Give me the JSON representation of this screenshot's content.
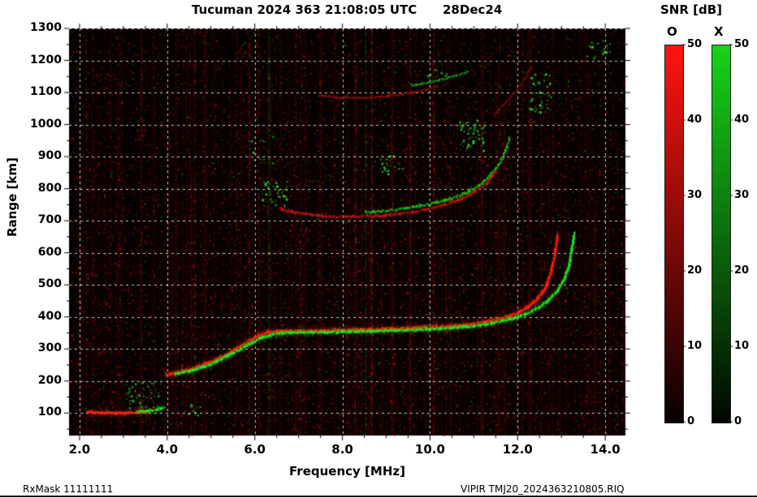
{
  "title": {
    "main": "Tucuman 2024 363 21:08:05 UTC",
    "date": "28Dec24"
  },
  "footer": {
    "left": "RxMask 11111111",
    "right": "VIPIR  TMJ20_2024363210805.RIQ"
  },
  "chart_data": {
    "type": "heatmap",
    "description": "VIPIR ionogram: echo SNR versus sounding frequency and virtual range. O-mode echoes shown in red, X-mode echoes in green on black background.",
    "title": "Tucuman 2024 363 21:08:05 UTC",
    "subtitle": "28Dec24",
    "xlabel": "Frequency [MHz]",
    "ylabel": "Range [km]",
    "xlim": [
      1.76,
      14.46
    ],
    "ylim": [
      30,
      1300
    ],
    "x_tick_values": [
      2,
      4,
      6,
      8,
      10,
      12,
      14
    ],
    "x_tick_labels": [
      "2.0",
      "4.0",
      "6.0",
      "8.0",
      "10.0",
      "12.0",
      "14.0"
    ],
    "x_minor_step": 0.5,
    "y_tick_values": [
      100,
      200,
      300,
      400,
      500,
      600,
      700,
      800,
      900,
      1000,
      1100,
      1200,
      1300
    ],
    "y_tick_labels": [
      "100",
      "200",
      "300",
      "400",
      "500",
      "600",
      "700",
      "800",
      "900",
      "1000",
      "1100",
      "1200",
      "1300"
    ],
    "y_minor_step": 50,
    "grid": {
      "show": true,
      "color": "#ffffff",
      "dash": [
        3,
        4
      ],
      "alpha": 0.8
    },
    "plot_bg": "#060100",
    "colorbar": {
      "title": "SNR [dB]",
      "min": 0,
      "max": 50,
      "tick_values": [
        0,
        10,
        20,
        30,
        40,
        50
      ],
      "tick_labels": [
        "0",
        "10",
        "20",
        "30",
        "40",
        "50"
      ],
      "bars": [
        {
          "label": "O",
          "top_color": "#ff1410",
          "bottom_color": "#070000"
        },
        {
          "label": "X",
          "top_color": "#17d417",
          "bottom_color": "#000700"
        }
      ]
    },
    "traces": [
      {
        "name": "E-layer-O",
        "mode": "O",
        "color": "#ff2a1a",
        "width": 3.0,
        "jitter": 2.0,
        "glow": 1,
        "points": [
          [
            2.15,
            104
          ],
          [
            2.45,
            101
          ],
          [
            2.8,
            100
          ],
          [
            3.1,
            100
          ],
          [
            3.35,
            102
          ],
          [
            3.55,
            105
          ]
        ]
      },
      {
        "name": "E-layer-X",
        "mode": "X",
        "color": "#2aee2a",
        "width": 2.5,
        "jitter": 2.0,
        "glow": 1,
        "points": [
          [
            3.3,
            105
          ],
          [
            3.55,
            107
          ],
          [
            3.75,
            111
          ],
          [
            3.92,
            117
          ]
        ]
      },
      {
        "name": "F-trace-O",
        "mode": "O",
        "color": "#ff2114",
        "width": 3.2,
        "jitter": 2.4,
        "glow": 1,
        "points": [
          [
            3.95,
            219
          ],
          [
            4.25,
            228
          ],
          [
            4.65,
            243
          ],
          [
            5.05,
            263
          ],
          [
            5.45,
            290
          ],
          [
            5.8,
            320
          ],
          [
            6.05,
            340
          ],
          [
            6.3,
            352
          ],
          [
            6.7,
            356
          ],
          [
            7.4,
            357
          ],
          [
            8.2,
            359
          ],
          [
            9.0,
            362
          ],
          [
            9.8,
            366
          ],
          [
            10.4,
            371
          ],
          [
            10.9,
            377
          ],
          [
            11.3,
            385
          ],
          [
            11.7,
            398
          ],
          [
            12.0,
            413
          ],
          [
            12.25,
            433
          ],
          [
            12.45,
            458
          ],
          [
            12.6,
            488
          ],
          [
            12.7,
            520
          ],
          [
            12.78,
            560
          ],
          [
            12.85,
            612
          ],
          [
            12.9,
            655
          ]
        ]
      },
      {
        "name": "F-trace-X",
        "mode": "X",
        "color": "#21ef21",
        "width": 2.8,
        "jitter": 2.0,
        "glow": 1,
        "points": [
          [
            4.15,
            221
          ],
          [
            4.55,
            233
          ],
          [
            4.95,
            251
          ],
          [
            5.35,
            277
          ],
          [
            5.75,
            307
          ],
          [
            6.1,
            332
          ],
          [
            6.4,
            347
          ],
          [
            6.8,
            351
          ],
          [
            7.5,
            352
          ],
          [
            8.3,
            354
          ],
          [
            9.1,
            357
          ],
          [
            9.9,
            361
          ],
          [
            10.5,
            366
          ],
          [
            11.0,
            372
          ],
          [
            11.4,
            380
          ],
          [
            11.8,
            392
          ],
          [
            12.15,
            408
          ],
          [
            12.45,
            428
          ],
          [
            12.7,
            453
          ],
          [
            12.9,
            483
          ],
          [
            13.05,
            518
          ],
          [
            13.15,
            558
          ],
          [
            13.22,
            610
          ],
          [
            13.27,
            662
          ]
        ]
      },
      {
        "name": "second-hop-O",
        "mode": "O",
        "color": "#d41810",
        "width": 2.6,
        "jitter": 2.6,
        "glow": 0,
        "points": [
          [
            6.55,
            736
          ],
          [
            7.0,
            723
          ],
          [
            7.6,
            714
          ],
          [
            8.2,
            712
          ],
          [
            8.8,
            715
          ],
          [
            9.3,
            722
          ],
          [
            9.8,
            733
          ],
          [
            10.3,
            749
          ],
          [
            10.7,
            768
          ],
          [
            11.0,
            790
          ],
          [
            11.3,
            820
          ],
          [
            11.5,
            852
          ]
        ]
      },
      {
        "name": "second-hop-X",
        "mode": "X",
        "color": "#1ed41e",
        "width": 2.4,
        "jitter": 2.6,
        "glow": 0,
        "points": [
          [
            8.5,
            726
          ],
          [
            9.0,
            731
          ],
          [
            9.5,
            740
          ],
          [
            10.0,
            752
          ],
          [
            10.45,
            768
          ],
          [
            10.8,
            786
          ],
          [
            11.1,
            810
          ],
          [
            11.35,
            840
          ],
          [
            11.55,
            875
          ],
          [
            11.7,
            915
          ],
          [
            11.8,
            960
          ]
        ]
      },
      {
        "name": "third-reflection-O",
        "mode": "O",
        "color": "#96140c",
        "width": 2.0,
        "jitter": 2.4,
        "glow": 0,
        "points": [
          [
            7.45,
            1092
          ],
          [
            7.95,
            1084
          ],
          [
            8.5,
            1083
          ],
          [
            9.0,
            1088
          ],
          [
            9.45,
            1097
          ],
          [
            9.85,
            1108
          ],
          [
            10.15,
            1118
          ]
        ]
      },
      {
        "name": "third-reflection-X",
        "mode": "X",
        "color": "#1aa81a",
        "width": 2.0,
        "jitter": 2.4,
        "glow": 0,
        "points": [
          [
            9.55,
            1122
          ],
          [
            9.95,
            1131
          ],
          [
            10.3,
            1142
          ],
          [
            10.6,
            1154
          ],
          [
            10.85,
            1166
          ]
        ]
      },
      {
        "name": "high-streak-O",
        "mode": "O",
        "color": "#7d120b",
        "width": 1.8,
        "jitter": 2.2,
        "glow": 0,
        "points": [
          [
            11.45,
            1030
          ],
          [
            11.75,
            1075
          ],
          [
            12.05,
            1125
          ],
          [
            12.3,
            1180
          ]
        ]
      }
    ],
    "rfi_lines": [
      {
        "f": 2.9,
        "color": "#ff2014",
        "alpha": 0.06
      },
      {
        "f": 3.4,
        "color": "#ff2014",
        "alpha": 0.06
      },
      {
        "f": 4.62,
        "color": "#ff2014",
        "alpha": 0.1
      },
      {
        "f": 5.58,
        "color": "#ff2014",
        "alpha": 0.07
      },
      {
        "f": 5.86,
        "color": "#ff2014",
        "alpha": 0.12
      },
      {
        "f": 6.08,
        "color": "#ff2014",
        "alpha": 0.1
      },
      {
        "f": 6.32,
        "color": "#22ee22",
        "alpha": 0.08
      },
      {
        "f": 7.04,
        "color": "#ff2014",
        "alpha": 0.08
      },
      {
        "f": 8.28,
        "color": "#ff2014",
        "alpha": 0.1
      },
      {
        "f": 8.52,
        "color": "#22ee22",
        "alpha": 0.07
      },
      {
        "f": 8.66,
        "color": "#ff2014",
        "alpha": 0.13
      },
      {
        "f": 9.12,
        "color": "#ff2014",
        "alpha": 0.08
      },
      {
        "f": 9.54,
        "color": "#ff2014",
        "alpha": 0.11
      },
      {
        "f": 10.08,
        "color": "#ff2014",
        "alpha": 0.12
      },
      {
        "f": 10.36,
        "color": "#ff2014",
        "alpha": 0.08
      },
      {
        "f": 11.18,
        "color": "#ff2014",
        "alpha": 0.07
      }
    ],
    "noise": {
      "red_count": 16000,
      "green_count": 6000,
      "clusters": [
        {
          "f0": 3.05,
          "f1": 3.85,
          "km0": 115,
          "km1": 205,
          "color": "#2ae02a",
          "count": 55
        },
        {
          "f0": 4.4,
          "f1": 4.75,
          "km0": 95,
          "km1": 135,
          "color": "#2ae02a",
          "count": 12
        },
        {
          "f0": 6.15,
          "f1": 6.75,
          "km0": 745,
          "km1": 825,
          "color": "#2ae02a",
          "count": 45
        },
        {
          "f0": 5.9,
          "f1": 6.45,
          "km0": 880,
          "km1": 965,
          "color": "#2ae02a",
          "count": 22
        },
        {
          "f0": 8.85,
          "f1": 9.35,
          "km0": 845,
          "km1": 905,
          "color": "#2ae02a",
          "count": 25
        },
        {
          "f0": 9.9,
          "f1": 10.4,
          "km0": 1145,
          "km1": 1180,
          "color": "#2ae02a",
          "count": 15
        },
        {
          "f0": 10.65,
          "f1": 11.25,
          "km0": 920,
          "km1": 1020,
          "color": "#2ae02a",
          "count": 60
        },
        {
          "f0": 12.25,
          "f1": 12.75,
          "km0": 1040,
          "km1": 1165,
          "color": "#2ae02a",
          "count": 50
        },
        {
          "f0": 13.55,
          "f1": 14.1,
          "km0": 1205,
          "km1": 1270,
          "color": "#2ae02a",
          "count": 20
        }
      ]
    }
  }
}
